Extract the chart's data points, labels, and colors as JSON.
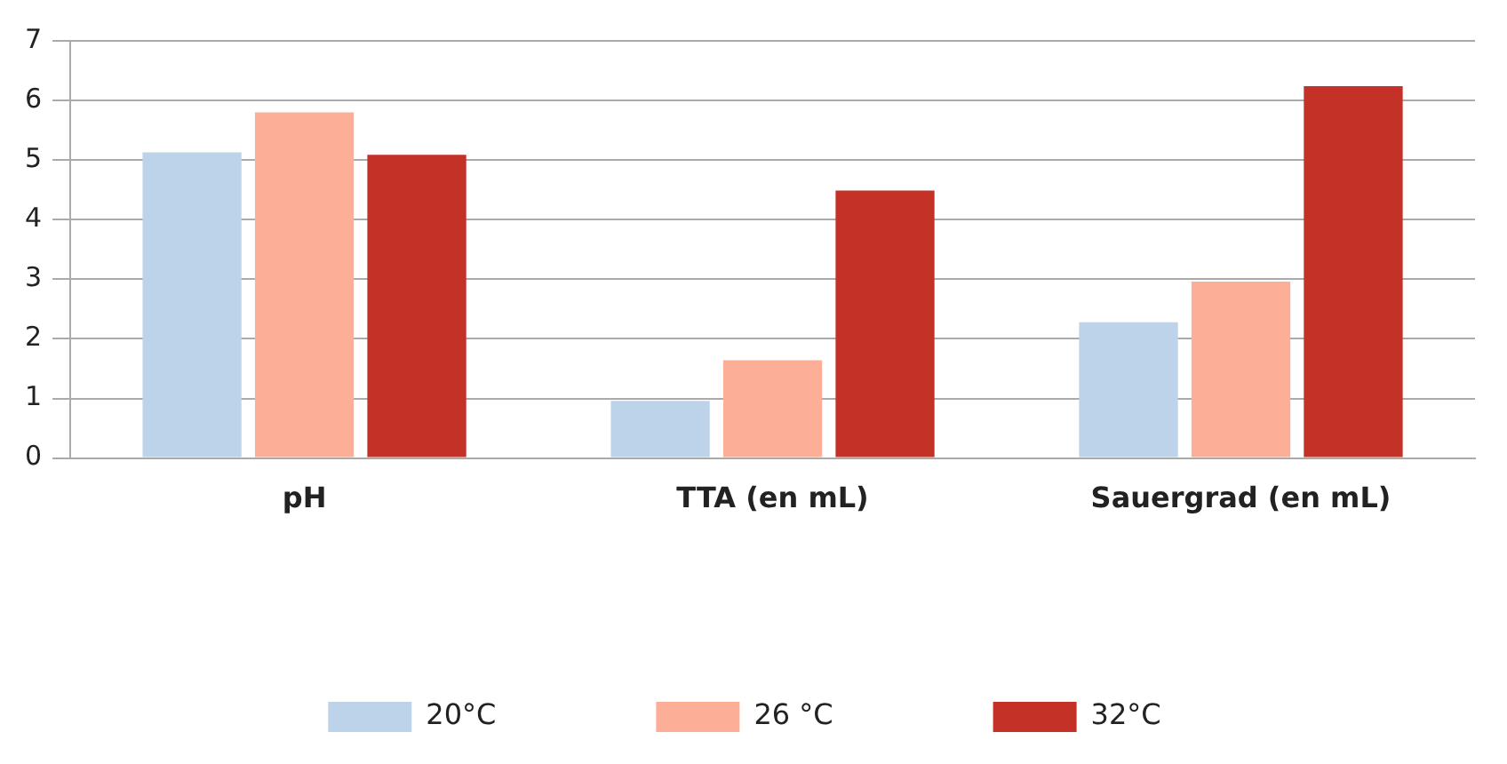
{
  "chart_data": {
    "type": "bar",
    "categories": [
      "pH",
      "TTA (en mL)",
      "Sauergrad (en mL)"
    ],
    "series": [
      {
        "name": "20°C",
        "color": "#bcd3ea",
        "values": [
          5.13,
          0.96,
          2.28
        ]
      },
      {
        "name": "26 °C",
        "color": "#fdae97",
        "values": [
          5.8,
          1.64,
          2.96
        ]
      },
      {
        "name": "32°C",
        "color": "#c33127",
        "values": [
          5.09,
          4.49,
          6.24
        ]
      }
    ],
    "ylim": [
      0,
      7
    ],
    "yticks": [
      0,
      1,
      2,
      3,
      4,
      5,
      6,
      7
    ],
    "grid": "y",
    "legend": "bottom"
  }
}
